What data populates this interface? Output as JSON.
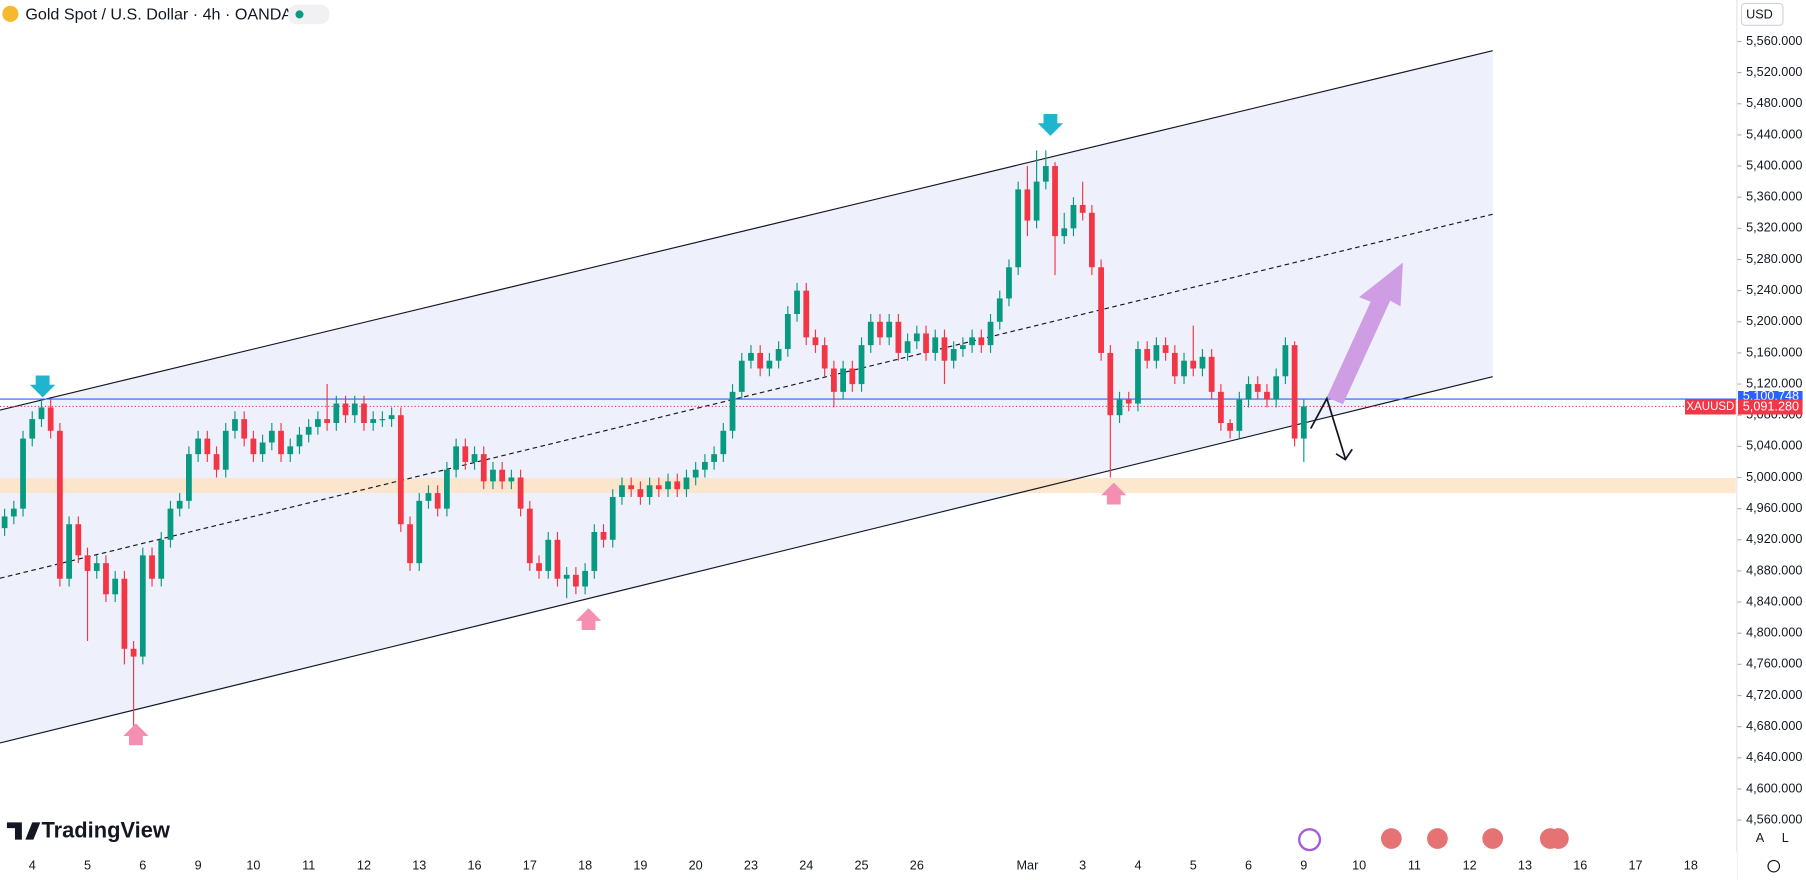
{
  "chart_data": {
    "type": "candlestick",
    "title": "Gold Spot / U.S. Dollar · 4h · OANDA",
    "currency": "USD",
    "brand": "TradingView",
    "scale_buttons": [
      "A",
      "L"
    ],
    "up_color": "#089981",
    "down_color": "#f23645",
    "ylim": [
      4560,
      5560
    ],
    "yticks": [
      {
        "value": 4560,
        "label": "4,560.000"
      },
      {
        "value": 4600,
        "label": "4,600.000"
      },
      {
        "value": 4640,
        "label": "4,640.000"
      },
      {
        "value": 4680,
        "label": "4,680.000"
      },
      {
        "value": 4720,
        "label": "4,720.000"
      },
      {
        "value": 4760,
        "label": "4,760.000"
      },
      {
        "value": 4800,
        "label": "4,800.000"
      },
      {
        "value": 4840,
        "label": "4,840.000"
      },
      {
        "value": 4880,
        "label": "4,880.000"
      },
      {
        "value": 4920,
        "label": "4,920.000"
      },
      {
        "value": 4960,
        "label": "4,960.000"
      },
      {
        "value": 5000,
        "label": "5,000.000"
      },
      {
        "value": 5040,
        "label": "5,040.000"
      },
      {
        "value": 5080,
        "label": "5,080.000"
      },
      {
        "value": 5120,
        "label": "5,120.000"
      },
      {
        "value": 5160,
        "label": "5,160.000"
      },
      {
        "value": 5200,
        "label": "5,200.000"
      },
      {
        "value": 5240,
        "label": "5,240.000"
      },
      {
        "value": 5280,
        "label": "5,280.000"
      },
      {
        "value": 5320,
        "label": "5,320.000"
      },
      {
        "value": 5360,
        "label": "5,360.000"
      },
      {
        "value": 5400,
        "label": "5,400.000"
      },
      {
        "value": 5440,
        "label": "5,440.000"
      },
      {
        "value": 5480,
        "label": "5,480.000"
      },
      {
        "value": 5520,
        "label": "5,520.000"
      },
      {
        "value": 5560,
        "label": "5,560.000"
      }
    ],
    "bid_line": {
      "value": 5100.748,
      "label": "5,100.748"
    },
    "current_price": {
      "value": 5091.28,
      "label": "5,091.280",
      "symbol": "XAUUSD"
    },
    "categories": [
      null,
      null,
      null,
      "4",
      null,
      null,
      null,
      null,
      null,
      "5",
      null,
      null,
      null,
      null,
      null,
      "6",
      null,
      null,
      null,
      null,
      null,
      "9",
      null,
      null,
      null,
      null,
      null,
      "10",
      null,
      null,
      null,
      null,
      null,
      "11",
      null,
      null,
      null,
      null,
      null,
      "12",
      null,
      null,
      null,
      null,
      null,
      "13",
      null,
      null,
      null,
      null,
      null,
      "16",
      null,
      null,
      null,
      null,
      null,
      "17",
      null,
      null,
      null,
      null,
      null,
      "18",
      null,
      null,
      null,
      null,
      null,
      "19",
      null,
      null,
      null,
      null,
      null,
      "20",
      null,
      null,
      null,
      null,
      null,
      "23",
      null,
      null,
      null,
      null,
      null,
      "24",
      null,
      null,
      null,
      null,
      null,
      "25",
      null,
      null,
      null,
      null,
      null,
      "26",
      null,
      null,
      null,
      null,
      null,
      null,
      null,
      null,
      null,
      null,
      null,
      "Mar",
      null,
      null,
      null,
      null,
      null,
      "3",
      null,
      null,
      null,
      null,
      null,
      "4",
      null,
      null,
      null,
      null,
      null,
      "5",
      null,
      null,
      null,
      null,
      null,
      "6",
      null,
      null,
      null,
      null,
      null,
      "9",
      null,
      null,
      null,
      null,
      null,
      "10",
      null,
      null,
      null,
      null,
      null,
      "11",
      null,
      null,
      null,
      null,
      null,
      "12",
      null,
      null,
      null,
      null,
      null,
      "13",
      null,
      null,
      null,
      null,
      null,
      "16",
      null,
      null,
      null,
      null,
      null,
      "17",
      null,
      null,
      null,
      null,
      null,
      "18",
      null,
      null,
      null,
      null,
      null
    ],
    "open": [
      4935,
      4950,
      4960,
      5050,
      5075,
      5090,
      5060,
      4870,
      4940,
      4900,
      4880,
      4890,
      4850,
      4870,
      4780,
      4770,
      4900,
      4870,
      4920,
      4960,
      4970,
      5030,
      5050,
      5030,
      5010,
      5060,
      5075,
      5050,
      5030,
      5045,
      5060,
      5030,
      5040,
      5055,
      5065,
      5075,
      5070,
      5095,
      5080,
      5095,
      5070,
      5075,
      5075,
      5080,
      4940,
      4890,
      4970,
      4980,
      4960,
      5010,
      5040,
      5020,
      5030,
      4995,
      5010,
      4995,
      5000,
      4960,
      4890,
      4880,
      4920,
      4870,
      4875,
      4860,
      4880,
      4930,
      4920,
      4975,
      4990,
      4985,
      4975,
      4990,
      4985,
      4995,
      4985,
      5000,
      5010,
      5020,
      5030,
      5060,
      5110,
      5150,
      5160,
      5140,
      5150,
      5165,
      5210,
      5240,
      5180,
      5170,
      5140,
      5110,
      5140,
      5120,
      5170,
      5200,
      5180,
      5200,
      5160,
      5175,
      5185,
      5160,
      5180,
      5150,
      5165,
      5170,
      5180,
      5170,
      5200,
      5230,
      5270,
      5370,
      5330,
      5380,
      5400,
      5310,
      5320,
      5350,
      5340,
      5270,
      5160,
      5080,
      5100,
      5095,
      5165,
      5150,
      5170,
      5160,
      5130,
      5150,
      5140,
      5155,
      5110,
      5070,
      5060,
      5100,
      5120,
      5110,
      5100,
      5130,
      5170,
      5050,
      null,
      null,
      null,
      null,
      null,
      null,
      null,
      null,
      null,
      null,
      null,
      null,
      null,
      null,
      null,
      null,
      null,
      null,
      null,
      null,
      null,
      null,
      null,
      null,
      null,
      null,
      null,
      null,
      null,
      null,
      null,
      null,
      null,
      null,
      null,
      null,
      null,
      null,
      null,
      null,
      null,
      null,
      null,
      null,
      null,
      null,
      null
    ],
    "high": [
      4960,
      4970,
      5060,
      5085,
      5100,
      5100,
      5070,
      4950,
      4950,
      4910,
      4900,
      4900,
      4880,
      4880,
      4790,
      4910,
      4910,
      4930,
      4970,
      4980,
      5040,
      5060,
      5060,
      5040,
      5070,
      5085,
      5085,
      5060,
      5055,
      5070,
      5070,
      5050,
      5065,
      5075,
      5085,
      5120,
      5105,
      5105,
      5105,
      5105,
      5085,
      5085,
      5090,
      5090,
      4950,
      4980,
      4990,
      4990,
      5020,
      5050,
      5050,
      5040,
      5040,
      5020,
      5020,
      5010,
      5010,
      4970,
      4900,
      4930,
      4930,
      4885,
      4885,
      4890,
      4940,
      4940,
      4985,
      5000,
      5000,
      4995,
      5000,
      5000,
      5005,
      5005,
      5010,
      5020,
      5030,
      5040,
      5070,
      5120,
      5160,
      5170,
      5170,
      5160,
      5175,
      5220,
      5250,
      5250,
      5190,
      5180,
      5150,
      5150,
      5150,
      5180,
      5210,
      5210,
      5210,
      5210,
      5185,
      5195,
      5195,
      5190,
      5190,
      5175,
      5180,
      5190,
      5190,
      5210,
      5240,
      5280,
      5380,
      5400,
      5420,
      5420,
      5405,
      5340,
      5360,
      5380,
      5350,
      5280,
      5170,
      5110,
      5110,
      5175,
      5175,
      5180,
      5180,
      5170,
      5160,
      5195,
      5165,
      5165,
      5120,
      5075,
      5110,
      5130,
      5130,
      5120,
      5140,
      5180,
      5175,
      5100,
      null,
      null,
      null,
      null,
      null,
      null,
      null,
      null,
      null,
      null,
      null,
      null,
      null,
      null,
      null,
      null,
      null,
      null,
      null,
      null,
      null,
      null,
      null,
      null,
      null,
      null,
      null,
      null,
      null,
      null,
      null,
      null,
      null,
      null,
      null,
      null,
      null,
      null,
      null,
      null,
      null,
      null,
      null,
      null,
      null,
      null,
      null
    ],
    "low": [
      4925,
      4940,
      4950,
      5040,
      5065,
      5050,
      4860,
      4860,
      4890,
      4790,
      4870,
      4840,
      4840,
      4760,
      4660,
      4760,
      4860,
      4860,
      4910,
      4950,
      4960,
      5020,
      5020,
      5000,
      5000,
      5050,
      5040,
      5020,
      5020,
      5035,
      5020,
      5020,
      5030,
      5045,
      5055,
      5060,
      5060,
      5070,
      5070,
      5060,
      5060,
      5065,
      5065,
      4930,
      4880,
      4880,
      4960,
      4950,
      4950,
      5000,
      5010,
      5010,
      4985,
      4985,
      4985,
      4985,
      4950,
      4880,
      4870,
      4870,
      4860,
      4845,
      4850,
      4850,
      4870,
      4910,
      4910,
      4965,
      4975,
      4965,
      4965,
      4975,
      4975,
      4975,
      4975,
      4990,
      5000,
      5010,
      5020,
      5050,
      5100,
      5140,
      5130,
      5130,
      5140,
      5155,
      5200,
      5170,
      5160,
      5130,
      5090,
      5100,
      5110,
      5110,
      5160,
      5170,
      5170,
      5150,
      5150,
      5165,
      5150,
      5150,
      5120,
      5140,
      5155,
      5160,
      5160,
      5160,
      5190,
      5220,
      5260,
      5310,
      5320,
      5370,
      5260,
      5300,
      5310,
      5330,
      5260,
      5150,
      5000,
      5070,
      5085,
      5085,
      5140,
      5140,
      5150,
      5120,
      5120,
      5130,
      5130,
      5100,
      5060,
      5050,
      5050,
      5090,
      5100,
      5090,
      5090,
      5120,
      5040,
      5020,
      null,
      null,
      null,
      null,
      null,
      null,
      null,
      null,
      null,
      null,
      null,
      null,
      null,
      null,
      null,
      null,
      null,
      null,
      null,
      null,
      null,
      null,
      null,
      null,
      null,
      null,
      null,
      null,
      null,
      null,
      null,
      null,
      null,
      null,
      null,
      null,
      null,
      null,
      null,
      null,
      null,
      null,
      null,
      null,
      null,
      null,
      null
    ],
    "close": [
      4950,
      4960,
      5050,
      5075,
      5090,
      5060,
      4870,
      4940,
      4900,
      4880,
      4890,
      4850,
      4870,
      4780,
      4770,
      4900,
      4870,
      4920,
      4960,
      4970,
      5030,
      5050,
      5030,
      5010,
      5060,
      5075,
      5050,
      5030,
      5045,
      5060,
      5030,
      5040,
      5055,
      5065,
      5075,
      5070,
      5095,
      5080,
      5095,
      5070,
      5075,
      5075,
      5080,
      4940,
      4890,
      4970,
      4980,
      4960,
      5010,
      5040,
      5020,
      5030,
      4995,
      5010,
      4995,
      5000,
      4960,
      4890,
      4880,
      4920,
      4870,
      4875,
      4860,
      4880,
      4930,
      4920,
      4975,
      4990,
      4985,
      4975,
      4990,
      4985,
      4995,
      4985,
      5000,
      5010,
      5020,
      5030,
      5060,
      5110,
      5150,
      5160,
      5140,
      5150,
      5165,
      5210,
      5240,
      5180,
      5170,
      5140,
      5110,
      5140,
      5120,
      5170,
      5200,
      5180,
      5200,
      5160,
      5175,
      5185,
      5160,
      5180,
      5150,
      5165,
      5170,
      5180,
      5170,
      5200,
      5230,
      5270,
      5370,
      5330,
      5380,
      5400,
      5310,
      5320,
      5350,
      5340,
      5270,
      5160,
      5080,
      5100,
      5095,
      5165,
      5150,
      5170,
      5160,
      5130,
      5150,
      5140,
      5155,
      5110,
      5070,
      5060,
      5100,
      5120,
      5110,
      5100,
      5130,
      5170,
      5050,
      5091.28,
      null,
      null,
      null,
      null,
      null,
      null,
      null,
      null,
      null,
      null,
      null,
      null,
      null,
      null,
      null,
      null,
      null,
      null,
      null,
      null,
      null,
      null,
      null,
      null,
      null,
      null,
      null,
      null,
      null,
      null,
      null,
      null,
      null,
      null,
      null,
      null,
      null,
      null,
      null,
      null,
      null,
      null,
      null,
      null,
      null,
      null,
      null
    ]
  }
}
